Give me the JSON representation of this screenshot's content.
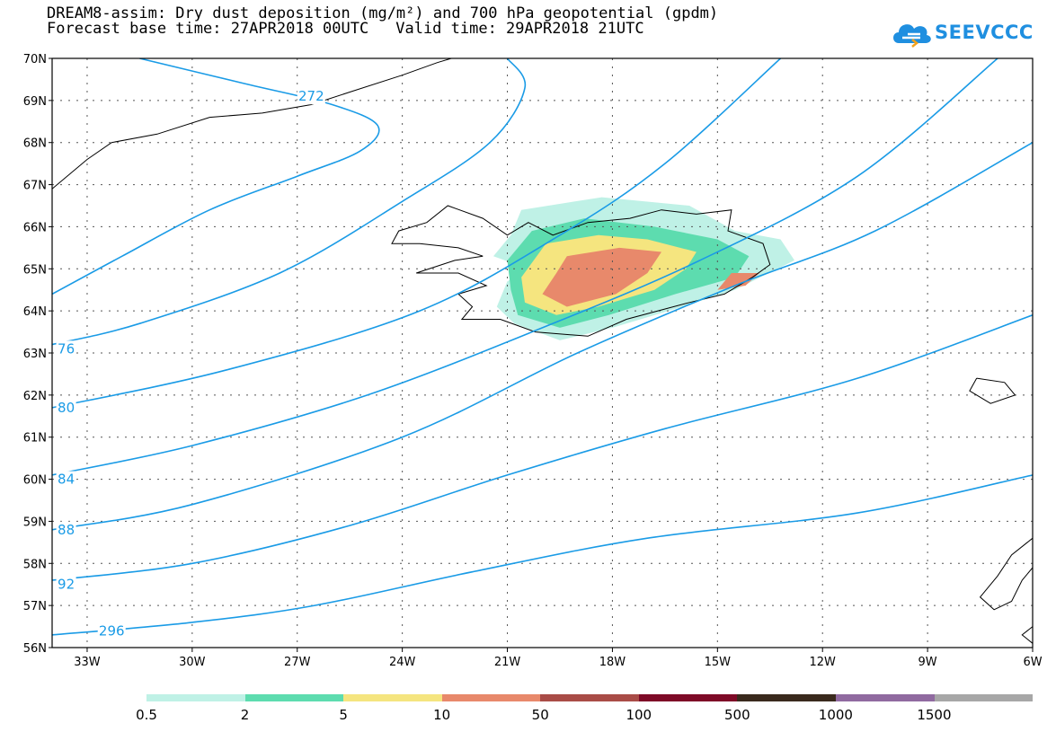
{
  "header": {
    "title": "DREAM8-assim: Dry dust deposition (mg/m²) and 700 hPa geopotential (gpdm)",
    "forecast_base": "Forecast base time: 27APR2018 00UTC",
    "valid_time": "Valid time: 29APR2018 21UTC"
  },
  "logo": {
    "text": "SEEVCCC",
    "color": "#1f8fe0",
    "icon": "cloud-icon"
  },
  "map": {
    "lon_range": [
      -34,
      -6
    ],
    "lat_range": [
      56,
      70
    ],
    "lon_ticks": [
      "33W",
      "30W",
      "27W",
      "24W",
      "21W",
      "18W",
      "15W",
      "12W",
      "9W",
      "6W"
    ],
    "lon_values": [
      -33,
      -30,
      -27,
      -24,
      -21,
      -18,
      -15,
      -12,
      -9,
      -6
    ],
    "lat_ticks": [
      "56N",
      "57N",
      "58N",
      "59N",
      "60N",
      "61N",
      "62N",
      "63N",
      "64N",
      "65N",
      "66N",
      "67N",
      "68N",
      "69N",
      "70N"
    ],
    "lat_values": [
      56,
      57,
      58,
      59,
      60,
      61,
      62,
      63,
      64,
      65,
      66,
      67,
      68,
      69,
      70
    ],
    "grid": "dotted",
    "contour_color": "#1a9be6",
    "contour_labels": [
      {
        "text": "272",
        "lon": -26.6,
        "lat": 69.1
      },
      {
        "text": "76",
        "lon": -33.6,
        "lat": 63.1
      },
      {
        "text": "80",
        "lon": -33.6,
        "lat": 61.7
      },
      {
        "text": "84",
        "lon": -33.6,
        "lat": 60.0
      },
      {
        "text": "88",
        "lon": -33.6,
        "lat": 58.8
      },
      {
        "text": "92",
        "lon": -33.6,
        "lat": 57.5
      },
      {
        "text": "296",
        "lon": -32.3,
        "lat": 56.4
      }
    ],
    "contours": [
      [
        [
          -31.5,
          70.0
        ],
        [
          -28.5,
          69.4
        ],
        [
          -26.0,
          68.9
        ],
        [
          -24.7,
          68.4
        ],
        [
          -25.2,
          67.8
        ],
        [
          -27.0,
          67.2
        ],
        [
          -29.5,
          66.4
        ],
        [
          -32.0,
          65.3
        ],
        [
          -34.0,
          64.4
        ]
      ],
      [
        [
          -21.0,
          70.0
        ],
        [
          -20.5,
          69.3
        ],
        [
          -21.5,
          68.0
        ],
        [
          -24.0,
          66.6
        ],
        [
          -27.5,
          64.9
        ],
        [
          -31.5,
          63.7
        ],
        [
          -34.0,
          63.2
        ]
      ],
      [
        [
          -13.2,
          70.0
        ],
        [
          -16.5,
          67.5
        ],
        [
          -19.5,
          65.8
        ],
        [
          -23.5,
          64.0
        ],
        [
          -29.0,
          62.6
        ],
        [
          -34.0,
          61.7
        ]
      ],
      [
        [
          -7.0,
          70.0
        ],
        [
          -11.0,
          67.2
        ],
        [
          -15.5,
          65.2
        ],
        [
          -20.0,
          63.6
        ],
        [
          -25.0,
          62.0
        ],
        [
          -30.0,
          60.8
        ],
        [
          -34.0,
          60.1
        ]
      ],
      [
        [
          -6.0,
          68.0
        ],
        [
          -10.5,
          65.9
        ],
        [
          -14.5,
          64.6
        ],
        [
          -19.0,
          63.0
        ],
        [
          -24.0,
          61.0
        ],
        [
          -30.0,
          59.4
        ],
        [
          -34.0,
          58.8
        ]
      ],
      [
        [
          -6.0,
          63.9
        ],
        [
          -11.0,
          62.4
        ],
        [
          -16.5,
          61.2
        ],
        [
          -21.0,
          60.1
        ],
        [
          -25.5,
          58.9
        ],
        [
          -30.0,
          58.0
        ],
        [
          -34.0,
          57.6
        ]
      ],
      [
        [
          -6.0,
          60.1
        ],
        [
          -11.0,
          59.2
        ],
        [
          -17.0,
          58.6
        ],
        [
          -22.0,
          57.8
        ],
        [
          -26.5,
          57.0
        ],
        [
          -30.0,
          56.6
        ],
        [
          -34.0,
          56.3
        ]
      ]
    ],
    "dust_polygons": [
      {
        "level": "0.5",
        "color": "#bff1e6",
        "points": [
          [
            -20.6,
            66.4
          ],
          [
            -18.3,
            66.7
          ],
          [
            -15.8,
            66.5
          ],
          [
            -14.5,
            65.9
          ],
          [
            -13.2,
            65.7
          ],
          [
            -12.8,
            65.2
          ],
          [
            -14.5,
            64.5
          ],
          [
            -16.0,
            64.1
          ],
          [
            -18.0,
            63.6
          ],
          [
            -19.5,
            63.3
          ],
          [
            -20.8,
            63.7
          ],
          [
            -21.3,
            64.1
          ],
          [
            -21.0,
            64.7
          ],
          [
            -20.4,
            65.0
          ],
          [
            -21.4,
            65.3
          ],
          [
            -20.9,
            65.8
          ]
        ]
      },
      {
        "level": "2",
        "color": "#5ddcaf",
        "points": [
          [
            -20.3,
            65.9
          ],
          [
            -18.8,
            66.2
          ],
          [
            -16.8,
            66.0
          ],
          [
            -15.0,
            65.7
          ],
          [
            -14.1,
            65.3
          ],
          [
            -14.5,
            64.8
          ],
          [
            -16.2,
            64.4
          ],
          [
            -18.1,
            63.9
          ],
          [
            -19.5,
            63.6
          ],
          [
            -20.7,
            63.9
          ],
          [
            -20.9,
            64.5
          ],
          [
            -21.0,
            65.2
          ]
        ]
      },
      {
        "level": "5",
        "color": "#f5e57f",
        "points": [
          [
            -19.9,
            65.6
          ],
          [
            -18.4,
            65.8
          ],
          [
            -17.0,
            65.7
          ],
          [
            -15.6,
            65.4
          ],
          [
            -15.9,
            65.0
          ],
          [
            -16.8,
            64.5
          ],
          [
            -18.4,
            64.1
          ],
          [
            -19.6,
            63.9
          ],
          [
            -20.5,
            64.2
          ],
          [
            -20.6,
            64.8
          ]
        ]
      },
      {
        "level": "10",
        "color": "#e8896b",
        "points": [
          [
            -19.3,
            65.3
          ],
          [
            -17.8,
            65.5
          ],
          [
            -16.6,
            65.4
          ],
          [
            -17.0,
            64.9
          ],
          [
            -17.9,
            64.4
          ],
          [
            -19.3,
            64.1
          ],
          [
            -20.0,
            64.4
          ],
          [
            -19.6,
            64.9
          ]
        ]
      },
      {
        "level": "10",
        "color": "#e8896b",
        "points": [
          [
            -15.0,
            64.5
          ],
          [
            -14.2,
            64.6
          ],
          [
            -13.8,
            64.9
          ],
          [
            -14.6,
            64.9
          ]
        ]
      }
    ],
    "coastlines": [
      [
        [
          -21.7,
          65.3
        ],
        [
          -22.4,
          65.5
        ],
        [
          -23.5,
          65.6
        ],
        [
          -24.3,
          65.6
        ],
        [
          -24.1,
          65.9
        ],
        [
          -23.3,
          66.1
        ],
        [
          -22.7,
          66.5
        ],
        [
          -21.7,
          66.2
        ],
        [
          -21.0,
          65.8
        ],
        [
          -20.4,
          66.1
        ],
        [
          -19.7,
          65.8
        ],
        [
          -18.7,
          66.1
        ],
        [
          -17.5,
          66.2
        ],
        [
          -16.6,
          66.4
        ],
        [
          -15.6,
          66.3
        ],
        [
          -14.6,
          66.4
        ],
        [
          -14.7,
          65.9
        ],
        [
          -13.7,
          65.6
        ],
        [
          -13.5,
          65.1
        ],
        [
          -14.0,
          64.8
        ],
        [
          -14.8,
          64.4
        ],
        [
          -15.8,
          64.2
        ],
        [
          -16.7,
          64.0
        ],
        [
          -17.6,
          63.8
        ],
        [
          -18.7,
          63.4
        ],
        [
          -20.2,
          63.5
        ],
        [
          -21.2,
          63.8
        ],
        [
          -22.3,
          63.8
        ],
        [
          -22.0,
          64.1
        ],
        [
          -22.4,
          64.4
        ],
        [
          -21.6,
          64.6
        ],
        [
          -22.4,
          64.9
        ],
        [
          -23.6,
          64.9
        ],
        [
          -22.5,
          65.2
        ],
        [
          -21.7,
          65.3
        ]
      ],
      [
        [
          -34.0,
          66.9
        ],
        [
          -33.0,
          67.6
        ],
        [
          -32.3,
          68.0
        ],
        [
          -31.0,
          68.2
        ],
        [
          -29.5,
          68.6
        ],
        [
          -28.0,
          68.7
        ],
        [
          -26.6,
          68.9
        ],
        [
          -25.5,
          69.2
        ],
        [
          -24.0,
          69.6
        ],
        [
          -23.0,
          69.9
        ],
        [
          -22.6,
          70.0
        ]
      ],
      [
        [
          -7.6,
          62.4
        ],
        [
          -6.8,
          62.3
        ],
        [
          -6.5,
          62.0
        ],
        [
          -7.2,
          61.8
        ],
        [
          -7.8,
          62.1
        ],
        [
          -7.6,
          62.4
        ]
      ],
      [
        [
          -6.0,
          58.6
        ],
        [
          -6.6,
          58.2
        ],
        [
          -7.0,
          57.7
        ],
        [
          -7.5,
          57.2
        ],
        [
          -7.1,
          56.9
        ],
        [
          -6.6,
          57.1
        ],
        [
          -6.3,
          57.6
        ],
        [
          -6.0,
          57.9
        ]
      ],
      [
        [
          -6.0,
          56.5
        ],
        [
          -6.3,
          56.3
        ],
        [
          -6.0,
          56.1
        ]
      ]
    ]
  },
  "colorbar": {
    "labels": [
      "0.5",
      "2",
      "5",
      "10",
      "50",
      "100",
      "500",
      "1000",
      "1500"
    ],
    "colors": [
      "#bff1e6",
      "#5ddcaf",
      "#f5e57f",
      "#e8896b",
      "#a94c47",
      "#7e0a27",
      "#3a2a1d",
      "#906aa0",
      "#a7a7a7"
    ]
  }
}
